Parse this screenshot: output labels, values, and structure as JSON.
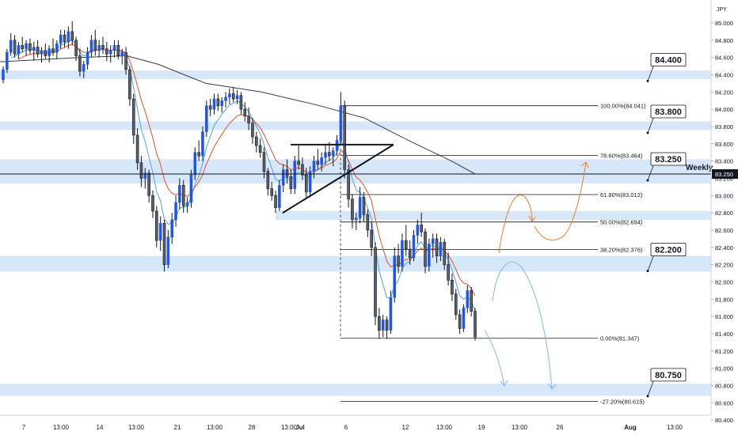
{
  "chart_data": {
    "type": "candlestick",
    "currency": "JPY",
    "y_axis": {
      "min": 80.4,
      "max": 85.0,
      "ticks": [
        "85.000",
        "84.800",
        "84.600",
        "84.400",
        "84.200",
        "84.000",
        "83.800",
        "83.600",
        "83.400",
        "83.200",
        "83.000",
        "82.800",
        "82.600",
        "82.400",
        "82.200",
        "82.000",
        "81.800",
        "81.600",
        "81.400",
        "81.200",
        "81.000",
        "80.800",
        "80.600",
        "80.400"
      ]
    },
    "x_axis": {
      "ticks": [
        "7",
        "13:00",
        "14",
        "13:00",
        "21",
        "13:00",
        "28",
        "13:00",
        "Jul",
        "6",
        "12",
        "13:00",
        "19",
        "13:00",
        "26",
        "Aug",
        "13:00"
      ]
    },
    "current_price": "83.250",
    "price_labels": [
      "84.400",
      "83.800",
      "83.250",
      "82.200",
      "80.750"
    ],
    "zones": [
      {
        "from": 84.35,
        "to": 84.45
      },
      {
        "from": 83.76,
        "to": 83.86
      },
      {
        "from": 83.14,
        "to": 83.42
      },
      {
        "from": 82.72,
        "to": 82.82
      },
      {
        "from": 82.12,
        "to": 82.3
      },
      {
        "from": 80.68,
        "to": 80.82
      }
    ],
    "horizontal_line": {
      "price": 83.25,
      "label": "Weekly"
    },
    "fibonacci": [
      {
        "label": "100.00%(84.041)",
        "price": 84.041
      },
      {
        "label": "78.60%(83.464)",
        "price": 83.464
      },
      {
        "label": "61.80%(83.012)",
        "price": 83.012
      },
      {
        "label": "50.00%(82.694)",
        "price": 82.694
      },
      {
        "label": "38.20%(82.376)",
        "price": 82.376
      },
      {
        "label": "0.00%(81.347)",
        "price": 81.347
      },
      {
        "label": "-27.20%(80.615)",
        "price": 80.615
      }
    ],
    "triangle": [
      [
        83.59,
        83.59,
        83.59
      ],
      [
        82.78,
        83.59,
        83.59
      ]
    ],
    "candles": [
      [
        84.34,
        84.5,
        84.3,
        84.46
      ],
      [
        84.46,
        84.7,
        84.42,
        84.66
      ],
      [
        84.66,
        84.88,
        84.62,
        84.8
      ],
      [
        84.8,
        84.86,
        84.6,
        84.64
      ],
      [
        84.64,
        84.78,
        84.58,
        84.74
      ],
      [
        84.74,
        84.84,
        84.66,
        84.7
      ],
      [
        84.7,
        84.8,
        84.62,
        84.76
      ],
      [
        84.76,
        84.82,
        84.64,
        84.68
      ],
      [
        84.68,
        84.78,
        84.56,
        84.72
      ],
      [
        84.72,
        84.8,
        84.6,
        84.64
      ],
      [
        84.64,
        84.72,
        84.54,
        84.68
      ],
      [
        84.68,
        84.76,
        84.58,
        84.62
      ],
      [
        84.62,
        84.74,
        84.54,
        84.7
      ],
      [
        84.7,
        84.82,
        84.62,
        84.66
      ],
      [
        84.66,
        84.8,
        84.58,
        84.76
      ],
      [
        84.76,
        84.92,
        84.7,
        84.86
      ],
      [
        84.86,
        84.92,
        84.72,
        84.78
      ],
      [
        84.78,
        84.96,
        84.7,
        84.9
      ],
      [
        84.9,
        85.02,
        84.74,
        84.8
      ],
      [
        84.8,
        84.84,
        84.56,
        84.62
      ],
      [
        84.62,
        84.7,
        84.38,
        84.44
      ],
      [
        84.44,
        84.56,
        84.36,
        84.52
      ],
      [
        84.52,
        84.72,
        84.46,
        84.66
      ],
      [
        84.66,
        84.86,
        84.6,
        84.8
      ],
      [
        84.8,
        84.92,
        84.62,
        84.68
      ],
      [
        84.68,
        84.8,
        84.6,
        84.74
      ],
      [
        84.74,
        84.84,
        84.64,
        84.7
      ],
      [
        84.7,
        84.78,
        84.56,
        84.64
      ],
      [
        84.64,
        84.74,
        84.54,
        84.68
      ],
      [
        84.68,
        84.8,
        84.6,
        84.74
      ],
      [
        84.74,
        84.8,
        84.58,
        84.62
      ],
      [
        84.62,
        84.7,
        84.52,
        84.66
      ],
      [
        84.66,
        84.72,
        84.4,
        84.46
      ],
      [
        84.46,
        84.5,
        84.04,
        84.12
      ],
      [
        84.12,
        84.18,
        83.6,
        83.7
      ],
      [
        83.7,
        83.78,
        83.3,
        83.38
      ],
      [
        83.38,
        83.46,
        83.1,
        83.2
      ],
      [
        83.2,
        83.32,
        83.08,
        83.26
      ],
      [
        83.26,
        83.3,
        82.92,
        83.0
      ],
      [
        83.0,
        83.06,
        82.74,
        82.82
      ],
      [
        82.82,
        82.88,
        82.4,
        82.48
      ],
      [
        82.48,
        82.76,
        82.36,
        82.68
      ],
      [
        82.68,
        82.72,
        82.12,
        82.2
      ],
      [
        82.2,
        82.6,
        82.16,
        82.52
      ],
      [
        82.52,
        82.8,
        82.44,
        82.72
      ],
      [
        82.72,
        83.0,
        82.64,
        82.92
      ],
      [
        82.92,
        83.2,
        82.84,
        83.12
      ],
      [
        83.12,
        83.18,
        82.8,
        82.88
      ],
      [
        82.88,
        82.98,
        82.8,
        82.92
      ],
      [
        82.92,
        83.3,
        82.86,
        83.24
      ],
      [
        83.24,
        83.56,
        83.18,
        83.5
      ],
      [
        83.5,
        83.64,
        83.4,
        83.46
      ],
      [
        83.46,
        83.8,
        83.4,
        83.74
      ],
      [
        83.74,
        84.1,
        83.68,
        84.04
      ],
      [
        84.04,
        84.12,
        83.92,
        84.0
      ],
      [
        84.0,
        84.18,
        83.94,
        84.12
      ],
      [
        84.12,
        84.18,
        83.98,
        84.04
      ],
      [
        84.04,
        84.14,
        83.96,
        84.1
      ],
      [
        84.1,
        84.2,
        84.02,
        84.14
      ],
      [
        84.14,
        84.24,
        84.06,
        84.18
      ],
      [
        84.18,
        84.26,
        84.08,
        84.12
      ],
      [
        84.12,
        84.22,
        84.06,
        84.16
      ],
      [
        84.16,
        84.2,
        83.94,
        84.0
      ],
      [
        84.0,
        84.08,
        83.86,
        83.92
      ],
      [
        83.92,
        84.02,
        83.76,
        83.84
      ],
      [
        83.84,
        83.9,
        83.6,
        83.68
      ],
      [
        83.68,
        83.74,
        83.5,
        83.58
      ],
      [
        83.58,
        83.66,
        83.44,
        83.5
      ],
      [
        83.5,
        83.56,
        83.2,
        83.28
      ],
      [
        83.28,
        83.32,
        83.0,
        83.08
      ],
      [
        83.08,
        83.16,
        82.94,
        83.0
      ],
      [
        83.0,
        83.06,
        82.8,
        82.86
      ],
      [
        82.86,
        83.18,
        82.82,
        83.12
      ],
      [
        83.12,
        83.36,
        83.04,
        83.3
      ],
      [
        83.3,
        83.42,
        83.14,
        83.22
      ],
      [
        83.22,
        83.3,
        83.02,
        83.08
      ],
      [
        83.08,
        83.46,
        83.02,
        83.4
      ],
      [
        83.4,
        83.58,
        83.3,
        83.36
      ],
      [
        83.36,
        83.44,
        83.18,
        83.24
      ],
      [
        83.24,
        83.32,
        82.98,
        83.04
      ],
      [
        83.04,
        83.34,
        82.98,
        83.28
      ],
      [
        83.28,
        83.46,
        83.2,
        83.4
      ],
      [
        83.4,
        83.54,
        83.3,
        83.36
      ],
      [
        83.36,
        83.5,
        83.28,
        83.44
      ],
      [
        83.44,
        83.58,
        83.36,
        83.5
      ],
      [
        83.5,
        83.62,
        83.4,
        83.46
      ],
      [
        83.46,
        83.56,
        83.34,
        83.52
      ],
      [
        83.52,
        83.7,
        83.46,
        83.64
      ],
      [
        83.64,
        84.2,
        83.58,
        84.04
      ],
      [
        84.04,
        84.1,
        83.2,
        83.3
      ],
      [
        83.3,
        83.36,
        82.86,
        82.96
      ],
      [
        82.96,
        83.02,
        82.62,
        82.72
      ],
      [
        82.72,
        82.8,
        82.6,
        82.74
      ],
      [
        82.74,
        83.1,
        82.68,
        82.98
      ],
      [
        82.98,
        83.04,
        82.7,
        82.78
      ],
      [
        82.78,
        82.84,
        82.52,
        82.6
      ],
      [
        82.6,
        82.7,
        82.3,
        82.4
      ],
      [
        82.4,
        82.46,
        81.5,
        81.6
      ],
      [
        81.6,
        81.7,
        81.34,
        81.44
      ],
      [
        81.44,
        81.62,
        81.36,
        81.56
      ],
      [
        81.56,
        81.6,
        81.34,
        81.44
      ],
      [
        81.44,
        81.9,
        81.4,
        81.82
      ],
      [
        81.82,
        82.4,
        81.76,
        82.3
      ],
      [
        82.3,
        82.44,
        82.1,
        82.18
      ],
      [
        82.18,
        82.56,
        82.12,
        82.48
      ],
      [
        82.48,
        82.66,
        82.3,
        82.38
      ],
      [
        82.38,
        82.48,
        82.2,
        82.28
      ],
      [
        82.28,
        82.6,
        82.24,
        82.54
      ],
      [
        82.54,
        82.72,
        82.44,
        82.66
      ],
      [
        82.66,
        82.8,
        82.52,
        82.58
      ],
      [
        82.58,
        82.62,
        82.1,
        82.18
      ],
      [
        82.18,
        82.5,
        82.12,
        82.44
      ],
      [
        82.44,
        82.56,
        82.28,
        82.5
      ],
      [
        82.5,
        82.56,
        82.22,
        82.3
      ],
      [
        82.3,
        82.52,
        82.24,
        82.46
      ],
      [
        82.46,
        82.5,
        82.14,
        82.2
      ],
      [
        82.2,
        82.34,
        81.96,
        82.02
      ],
      [
        82.02,
        82.1,
        81.78,
        81.86
      ],
      [
        81.86,
        81.92,
        81.56,
        81.62
      ],
      [
        81.62,
        81.68,
        81.4,
        81.46
      ],
      [
        81.46,
        81.74,
        81.42,
        81.7
      ],
      [
        81.7,
        81.96,
        81.64,
        81.9
      ],
      [
        81.9,
        81.94,
        81.6,
        81.66
      ],
      [
        81.66,
        81.7,
        81.32,
        81.36
      ]
    ]
  }
}
